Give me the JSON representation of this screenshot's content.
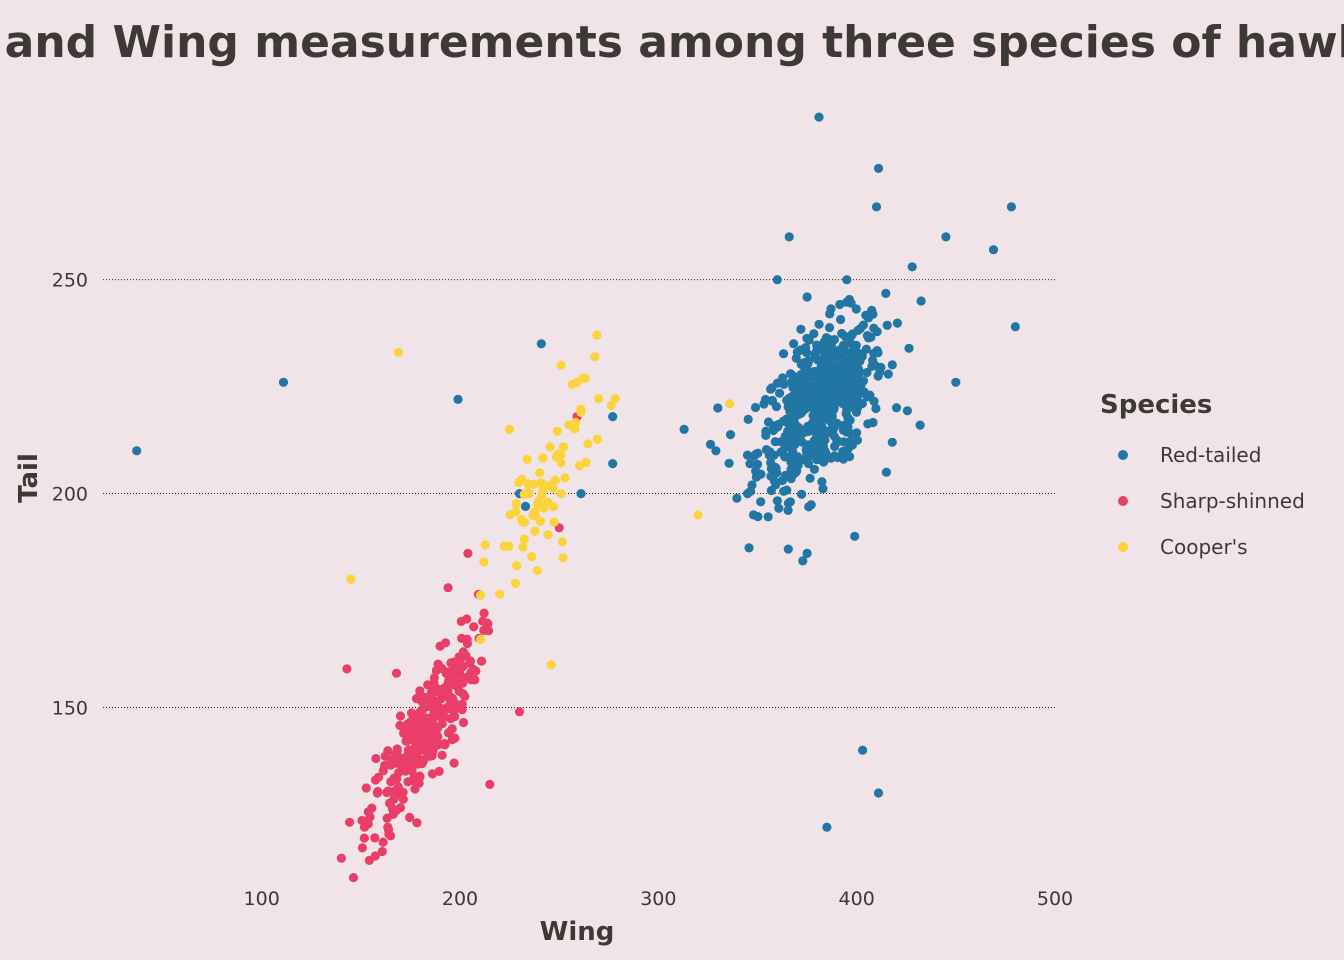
{
  "chart_data": {
    "type": "scatter",
    "title": "Tail and Wing measurements among three species of hawk",
    "xlabel": "Wing",
    "ylabel": "Tail",
    "xlim": [
      20,
      500
    ],
    "ylim": [
      112,
      292
    ],
    "x_ticks": [
      100,
      200,
      300,
      400,
      500
    ],
    "y_ticks": [
      150,
      200,
      250
    ],
    "grid": "horizontal-dotted",
    "legend": {
      "title": "Species",
      "placement": "right"
    },
    "series": [
      {
        "name": "Red-tailed",
        "color": "#2176a3",
        "cluster": {
          "n": 560,
          "mean_x": 382,
          "mean_y": 221,
          "sd_x": 16,
          "sd_y": 10,
          "corr": 0.55
        },
        "points": [
          [
            37,
            210
          ],
          [
            111,
            226
          ],
          [
            199,
            222
          ],
          [
            241,
            235
          ],
          [
            230,
            200
          ],
          [
            233,
            197
          ],
          [
            261,
            200
          ],
          [
            277,
            207
          ],
          [
            277,
            218
          ],
          [
            313,
            215
          ],
          [
            329,
            210
          ],
          [
            330,
            220
          ],
          [
            348,
            195
          ],
          [
            381,
            288
          ],
          [
            411,
            276
          ],
          [
            410,
            267
          ],
          [
            366,
            260
          ],
          [
            445,
            260
          ],
          [
            469,
            257
          ],
          [
            478,
            267
          ],
          [
            480,
            239
          ],
          [
            450,
            226
          ],
          [
            432,
            216
          ],
          [
            399,
            190
          ],
          [
            375,
            186
          ],
          [
            403,
            140
          ],
          [
            411,
            130
          ],
          [
            385,
            122
          ],
          [
            360,
            250
          ],
          [
            428,
            253
          ],
          [
            415,
            205
          ],
          [
            395,
            250
          ],
          [
            345,
            200
          ]
        ]
      },
      {
        "name": "Sharp-shinned",
        "color": "#e83e68",
        "cluster": {
          "n": 300,
          "mean_x": 181,
          "mean_y": 143,
          "sd_x": 14,
          "sd_y": 12,
          "corr": 0.85
        },
        "points": [
          [
            143,
            159
          ],
          [
            168,
            158
          ],
          [
            194,
            178
          ],
          [
            204,
            186
          ],
          [
            215,
            132
          ],
          [
            230,
            149
          ],
          [
            250,
            192
          ],
          [
            259,
            218
          ],
          [
            197,
            137
          ],
          [
            170,
            148
          ],
          [
            165,
            120
          ],
          [
            212,
            168
          ]
        ]
      },
      {
        "name": "Cooper's",
        "color": "#fbd33a",
        "cluster": {
          "n": 70,
          "mean_x": 244,
          "mean_y": 202,
          "sd_x": 15,
          "sd_y": 14,
          "corr": 0.85
        },
        "points": [
          [
            169,
            233
          ],
          [
            145,
            180
          ],
          [
            246,
            160
          ],
          [
            320,
            195
          ],
          [
            336,
            221
          ],
          [
            251,
            230
          ],
          [
            268,
            232
          ],
          [
            252,
            185
          ],
          [
            228,
            179
          ],
          [
            212,
            184
          ],
          [
            239,
            182
          ],
          [
            262,
            227
          ],
          [
            225,
            215
          ],
          [
            251,
            200
          ]
        ]
      }
    ]
  }
}
